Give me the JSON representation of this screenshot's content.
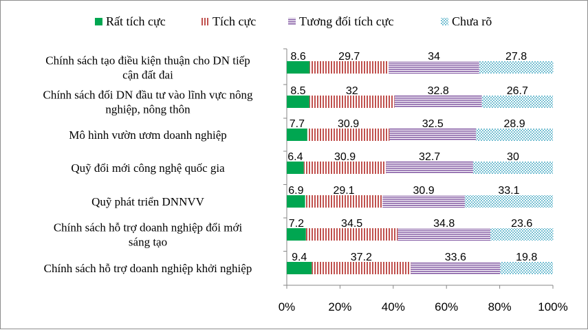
{
  "chart_data": {
    "type": "bar",
    "orientation": "horizontal",
    "stacked": "percent",
    "categories": [
      [
        "Chính sách tạo điều kiện thuận cho DN tiếp",
        "cận đất đai"
      ],
      [
        "Chính sách đối DN đầu tư vào lĩnh vực nông",
        "nghiệp, nông thôn"
      ],
      [
        "Mô hình vườn ươm doanh nghiệp"
      ],
      [
        "Quỹ đổi mới công nghệ quốc gia"
      ],
      [
        "Quỹ phát triển DNNVV"
      ],
      [
        "Chính sách  hỗ trợ doanh nghiệp đổi mới",
        "sáng tạo"
      ],
      [
        "Chính sách hỗ trợ doanh nghiệp khởi nghiệp"
      ]
    ],
    "series": [
      {
        "name": "Rất tích cực",
        "color": "#00a651",
        "pattern": "solid",
        "values": [
          8.6,
          8.5,
          7.7,
          6.4,
          6.9,
          7.2,
          9.4
        ]
      },
      {
        "name": "Tích cực",
        "color": "#c0504d",
        "pattern": "vertical-stripes",
        "values": [
          29.7,
          32,
          30.9,
          30.9,
          29.1,
          34.5,
          37.2
        ]
      },
      {
        "name": "Tương đối tích cực",
        "color": "#7b4f9d",
        "pattern": "horizontal-stripes",
        "values": [
          34,
          32.8,
          32.5,
          32.7,
          30.9,
          34.8,
          33.6
        ]
      },
      {
        "name": "Chưa rõ",
        "color": "#4bacc6",
        "pattern": "dots",
        "values": [
          27.8,
          26.7,
          28.9,
          30,
          33.1,
          23.6,
          19.8
        ]
      }
    ],
    "xlim": [
      0,
      100
    ],
    "xticks": [
      "0%",
      "20%",
      "40%",
      "60%",
      "80%",
      "100%"
    ],
    "legend_position": "top",
    "grid": false
  }
}
